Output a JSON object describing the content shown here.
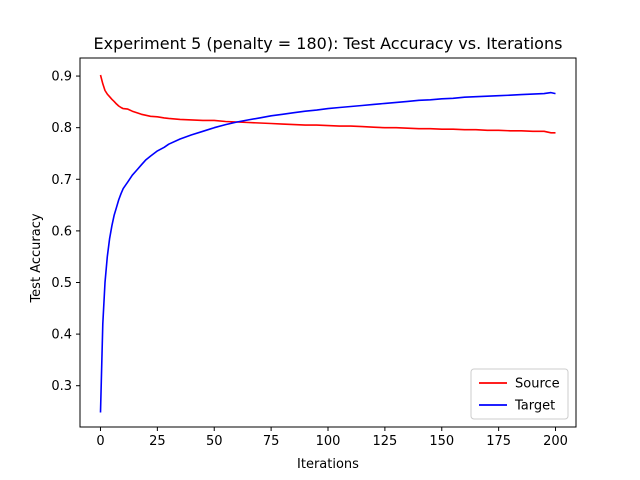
{
  "chart_data": {
    "type": "line",
    "title": "Experiment 5 (penalty = 180): Test Accuracy vs. Iterations",
    "xlabel": "Iterations",
    "ylabel": "Test Accuracy",
    "xlim": [
      -9,
      209
    ],
    "ylim": [
      0.22,
      0.935
    ],
    "xticks": [
      0,
      25,
      50,
      75,
      100,
      125,
      150,
      175,
      200
    ],
    "yticks": [
      0.3,
      0.4,
      0.5,
      0.6,
      0.7,
      0.8,
      0.9
    ],
    "grid": false,
    "legend_position": "lower-right",
    "series": [
      {
        "name": "Source",
        "color": "#ff0000",
        "points": [
          [
            0,
            0.902
          ],
          [
            1,
            0.885
          ],
          [
            2,
            0.872
          ],
          [
            3,
            0.865
          ],
          [
            4,
            0.86
          ],
          [
            5,
            0.855
          ],
          [
            6,
            0.851
          ],
          [
            7,
            0.846
          ],
          [
            8,
            0.842
          ],
          [
            9,
            0.839
          ],
          [
            10,
            0.837
          ],
          [
            12,
            0.836
          ],
          [
            14,
            0.832
          ],
          [
            16,
            0.829
          ],
          [
            18,
            0.826
          ],
          [
            20,
            0.824
          ],
          [
            22,
            0.822
          ],
          [
            25,
            0.821
          ],
          [
            28,
            0.819
          ],
          [
            30,
            0.818
          ],
          [
            35,
            0.816
          ],
          [
            40,
            0.815
          ],
          [
            45,
            0.814
          ],
          [
            50,
            0.814
          ],
          [
            55,
            0.812
          ],
          [
            60,
            0.811
          ],
          [
            65,
            0.81
          ],
          [
            70,
            0.809
          ],
          [
            75,
            0.808
          ],
          [
            80,
            0.807
          ],
          [
            85,
            0.806
          ],
          [
            90,
            0.805
          ],
          [
            95,
            0.805
          ],
          [
            100,
            0.804
          ],
          [
            105,
            0.803
          ],
          [
            110,
            0.803
          ],
          [
            115,
            0.802
          ],
          [
            120,
            0.801
          ],
          [
            125,
            0.8
          ],
          [
            130,
            0.8
          ],
          [
            135,
            0.799
          ],
          [
            140,
            0.798
          ],
          [
            145,
            0.798
          ],
          [
            150,
            0.797
          ],
          [
            155,
            0.797
          ],
          [
            160,
            0.796
          ],
          [
            165,
            0.796
          ],
          [
            170,
            0.795
          ],
          [
            175,
            0.795
          ],
          [
            180,
            0.794
          ],
          [
            185,
            0.794
          ],
          [
            190,
            0.793
          ],
          [
            195,
            0.793
          ],
          [
            198,
            0.79
          ],
          [
            200,
            0.79
          ]
        ]
      },
      {
        "name": "Target",
        "color": "#0000ff",
        "points": [
          [
            0,
            0.248
          ],
          [
            1,
            0.42
          ],
          [
            2,
            0.5
          ],
          [
            3,
            0.55
          ],
          [
            4,
            0.585
          ],
          [
            5,
            0.61
          ],
          [
            6,
            0.63
          ],
          [
            7,
            0.645
          ],
          [
            8,
            0.66
          ],
          [
            9,
            0.672
          ],
          [
            10,
            0.682
          ],
          [
            12,
            0.695
          ],
          [
            14,
            0.708
          ],
          [
            16,
            0.718
          ],
          [
            18,
            0.728
          ],
          [
            20,
            0.738
          ],
          [
            22,
            0.745
          ],
          [
            25,
            0.755
          ],
          [
            28,
            0.762
          ],
          [
            30,
            0.768
          ],
          [
            35,
            0.778
          ],
          [
            40,
            0.786
          ],
          [
            45,
            0.793
          ],
          [
            50,
            0.8
          ],
          [
            55,
            0.806
          ],
          [
            60,
            0.811
          ],
          [
            65,
            0.815
          ],
          [
            70,
            0.819
          ],
          [
            75,
            0.823
          ],
          [
            80,
            0.826
          ],
          [
            85,
            0.829
          ],
          [
            90,
            0.832
          ],
          [
            95,
            0.834
          ],
          [
            100,
            0.837
          ],
          [
            105,
            0.839
          ],
          [
            110,
            0.841
          ],
          [
            115,
            0.843
          ],
          [
            120,
            0.845
          ],
          [
            125,
            0.847
          ],
          [
            130,
            0.849
          ],
          [
            135,
            0.851
          ],
          [
            140,
            0.853
          ],
          [
            145,
            0.854
          ],
          [
            150,
            0.856
          ],
          [
            155,
            0.857
          ],
          [
            160,
            0.859
          ],
          [
            165,
            0.86
          ],
          [
            170,
            0.861
          ],
          [
            175,
            0.862
          ],
          [
            180,
            0.863
          ],
          [
            185,
            0.864
          ],
          [
            190,
            0.865
          ],
          [
            195,
            0.866
          ],
          [
            198,
            0.868
          ],
          [
            200,
            0.866
          ]
        ]
      }
    ]
  }
}
